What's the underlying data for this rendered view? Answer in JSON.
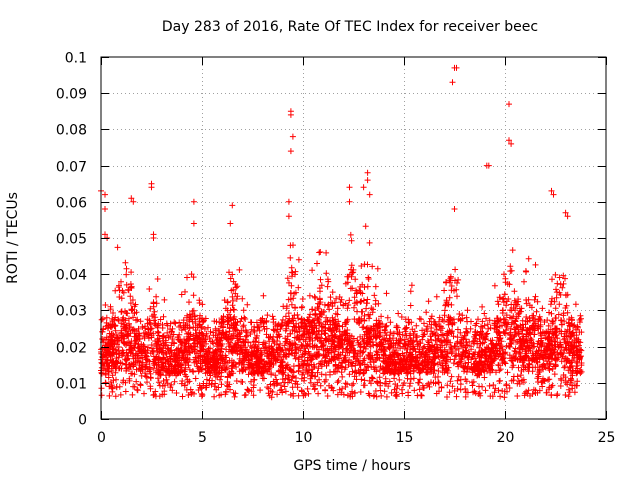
{
  "chart_data": {
    "type": "scatter",
    "title": "Day 283 of 2016, Rate Of TEC Index for receiver beec",
    "xlabel": "GPS time / hours",
    "ylabel": "ROTI / TECUs",
    "xlim": [
      0,
      25
    ],
    "ylim": [
      0,
      0.1
    ],
    "x_ticks": [
      "0",
      "5",
      "10",
      "15",
      "20",
      "25"
    ],
    "y_ticks": [
      "0",
      "0.01",
      "0.02",
      "0.03",
      "0.04",
      "0.05",
      "0.06",
      "0.07",
      "0.08",
      "0.09",
      "0.1"
    ],
    "grid": true,
    "marker": "+",
    "color": "#ff0000",
    "series": [
      {
        "name": "ROTI",
        "description": "dense scatter of ROTI values from 0 to 24 h, mostly 0.005-0.03 TECU",
        "outliers": [
          {
            "x": 0.0,
            "y": 0.063
          },
          {
            "x": 0.2,
            "y": 0.062
          },
          {
            "x": 0.2,
            "y": 0.058
          },
          {
            "x": 0.2,
            "y": 0.051
          },
          {
            "x": 0.3,
            "y": 0.05
          },
          {
            "x": 1.5,
            "y": 0.061
          },
          {
            "x": 1.6,
            "y": 0.06
          },
          {
            "x": 2.5,
            "y": 0.065
          },
          {
            "x": 2.5,
            "y": 0.064
          },
          {
            "x": 2.6,
            "y": 0.051
          },
          {
            "x": 2.6,
            "y": 0.05
          },
          {
            "x": 4.6,
            "y": 0.06
          },
          {
            "x": 4.6,
            "y": 0.054
          },
          {
            "x": 6.5,
            "y": 0.059
          },
          {
            "x": 6.4,
            "y": 0.054
          },
          {
            "x": 9.4,
            "y": 0.085
          },
          {
            "x": 9.4,
            "y": 0.084
          },
          {
            "x": 9.5,
            "y": 0.078
          },
          {
            "x": 9.4,
            "y": 0.074
          },
          {
            "x": 9.3,
            "y": 0.06
          },
          {
            "x": 9.3,
            "y": 0.056
          },
          {
            "x": 12.3,
            "y": 0.064
          },
          {
            "x": 12.3,
            "y": 0.06
          },
          {
            "x": 13.2,
            "y": 0.068
          },
          {
            "x": 13.2,
            "y": 0.066
          },
          {
            "x": 13.0,
            "y": 0.064
          },
          {
            "x": 13.3,
            "y": 0.062
          },
          {
            "x": 17.5,
            "y": 0.097
          },
          {
            "x": 17.6,
            "y": 0.097
          },
          {
            "x": 17.4,
            "y": 0.093
          },
          {
            "x": 17.5,
            "y": 0.058
          },
          {
            "x": 19.1,
            "y": 0.07
          },
          {
            "x": 19.2,
            "y": 0.07
          },
          {
            "x": 20.2,
            "y": 0.087
          },
          {
            "x": 20.2,
            "y": 0.077
          },
          {
            "x": 20.3,
            "y": 0.076
          },
          {
            "x": 22.3,
            "y": 0.063
          },
          {
            "x": 22.4,
            "y": 0.062
          },
          {
            "x": 23.0,
            "y": 0.057
          },
          {
            "x": 23.1,
            "y": 0.056
          }
        ]
      }
    ]
  }
}
